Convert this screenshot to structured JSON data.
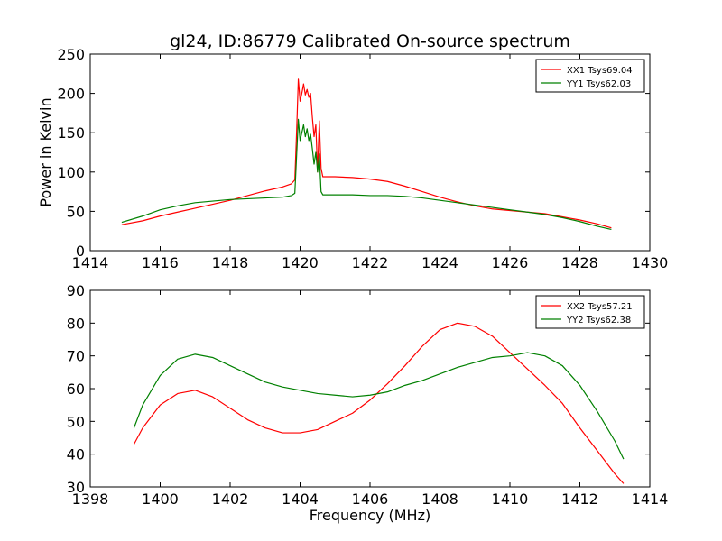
{
  "title": "gl24, ID:86779 Calibrated On-source spectrum",
  "colors": {
    "xx": "#ff0000",
    "yy": "#008000"
  },
  "chart_data": [
    {
      "type": "line",
      "panel": "top",
      "xlabel": "",
      "ylabel": "Power in Kelvin",
      "xlim": [
        1414,
        1430
      ],
      "ylim": [
        0,
        250
      ],
      "xticks": [
        1414,
        1416,
        1418,
        1420,
        1422,
        1424,
        1426,
        1428,
        1430
      ],
      "yticks": [
        0,
        50,
        100,
        150,
        200,
        250
      ],
      "legend": "top-right",
      "series": [
        {
          "name": "XX1 Tsys69.04",
          "color": "#ff0000",
          "x": [
            1414.9,
            1415.5,
            1416,
            1416.5,
            1417,
            1417.5,
            1418,
            1418.5,
            1419,
            1419.5,
            1419.75,
            1419.85,
            1419.9,
            1419.95,
            1420.0,
            1420.05,
            1420.1,
            1420.15,
            1420.2,
            1420.25,
            1420.3,
            1420.35,
            1420.4,
            1420.45,
            1420.5,
            1420.55,
            1420.6,
            1420.65,
            1420.7,
            1421,
            1421.5,
            1422,
            1422.5,
            1423,
            1423.5,
            1424,
            1424.5,
            1425,
            1425.5,
            1426,
            1426.5,
            1427,
            1427.5,
            1428,
            1428.5,
            1428.9
          ],
          "y": [
            33,
            38,
            44,
            49,
            54,
            59,
            64,
            70,
            76,
            81,
            85,
            90,
            150,
            218,
            190,
            200,
            212,
            198,
            205,
            195,
            200,
            170,
            145,
            160,
            100,
            165,
            105,
            94,
            94,
            94,
            93,
            91,
            88,
            82,
            75,
            68,
            62,
            57,
            53,
            51,
            49,
            47,
            43,
            39,
            34,
            29
          ]
        },
        {
          "name": "YY1 Tsys62.03",
          "color": "#008000",
          "x": [
            1414.9,
            1415.5,
            1416,
            1416.5,
            1417,
            1417.5,
            1418,
            1418.5,
            1419,
            1419.5,
            1419.75,
            1419.85,
            1419.9,
            1419.95,
            1420.0,
            1420.05,
            1420.1,
            1420.15,
            1420.2,
            1420.25,
            1420.3,
            1420.35,
            1420.4,
            1420.45,
            1420.5,
            1420.55,
            1420.6,
            1420.65,
            1420.7,
            1421,
            1421.5,
            1422,
            1422.5,
            1423,
            1423.5,
            1424,
            1424.5,
            1425,
            1425.5,
            1426,
            1426.5,
            1427,
            1427.5,
            1428,
            1428.5,
            1428.9
          ],
          "y": [
            36,
            44,
            52,
            57,
            61,
            63,
            65,
            66,
            67,
            68,
            70,
            73,
            120,
            167,
            140,
            150,
            160,
            145,
            155,
            140,
            148,
            130,
            110,
            125,
            100,
            123,
            75,
            71,
            71,
            71,
            71,
            70,
            70,
            69,
            67,
            64,
            61,
            58,
            55,
            52,
            49,
            46,
            42,
            37,
            31,
            27
          ]
        }
      ]
    },
    {
      "type": "line",
      "panel": "bottom",
      "xlabel": "Frequency (MHz)",
      "ylabel": "",
      "xlim": [
        1398,
        1414
      ],
      "ylim": [
        30,
        90
      ],
      "xticks": [
        1398,
        1400,
        1402,
        1404,
        1406,
        1408,
        1410,
        1412,
        1414
      ],
      "yticks": [
        30,
        40,
        50,
        60,
        70,
        80,
        90
      ],
      "legend": "top-right",
      "series": [
        {
          "name": "XX2 Tsys57.21",
          "color": "#ff0000",
          "x": [
            1399.25,
            1399.5,
            1400,
            1400.5,
            1401,
            1401.5,
            1402,
            1402.5,
            1403,
            1403.5,
            1404,
            1404.5,
            1405,
            1405.5,
            1406,
            1406.5,
            1407,
            1407.5,
            1408,
            1408.5,
            1409,
            1409.5,
            1410,
            1410.5,
            1411,
            1411.5,
            1412,
            1412.5,
            1413,
            1413.25
          ],
          "y": [
            43,
            48,
            55,
            58.5,
            59.5,
            57.5,
            54,
            50.5,
            48,
            46.5,
            46.5,
            47.5,
            50,
            52.5,
            56.5,
            61.5,
            67,
            73,
            78,
            80,
            79,
            76,
            71,
            66,
            61,
            55.5,
            48,
            41,
            34,
            31
          ]
        },
        {
          "name": "YY2 Tsys62.38",
          "color": "#008000",
          "x": [
            1399.25,
            1399.5,
            1400,
            1400.5,
            1401,
            1401.5,
            1402,
            1402.5,
            1403,
            1403.5,
            1404,
            1404.5,
            1405,
            1405.5,
            1406,
            1406.5,
            1407,
            1407.5,
            1408,
            1408.5,
            1409,
            1409.5,
            1410,
            1410.5,
            1411,
            1411.5,
            1412,
            1412.5,
            1413,
            1413.25
          ],
          "y": [
            48,
            55,
            64,
            69,
            70.5,
            69.5,
            67,
            64.5,
            62,
            60.5,
            59.5,
            58.5,
            58,
            57.5,
            58,
            59,
            61,
            62.5,
            64.5,
            66.5,
            68,
            69.5,
            70,
            71,
            70,
            67,
            61,
            53,
            44,
            38.5
          ]
        }
      ]
    }
  ]
}
